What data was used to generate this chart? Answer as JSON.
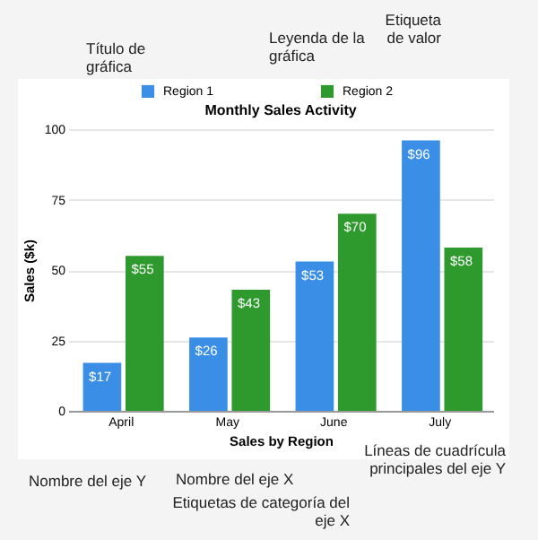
{
  "chart_data": {
    "type": "bar",
    "title": "Monthly Sales Activity",
    "xlabel": "Sales by Region",
    "ylabel": "Sales ($k)",
    "categories": [
      "April",
      "May",
      "June",
      "July"
    ],
    "series": [
      {
        "name": "Region 1",
        "color": "#3a8ee6",
        "values": [
          17,
          26,
          53,
          96
        ],
        "value_labels": [
          "$17",
          "$26",
          "$53",
          "$96"
        ]
      },
      {
        "name": "Region 2",
        "color": "#2e9a2e",
        "values": [
          55,
          43,
          70,
          58
        ],
        "value_labels": [
          "$55",
          "$43",
          "$70",
          "$58"
        ]
      }
    ],
    "ylim": [
      0,
      100
    ],
    "yticks": [
      0,
      25,
      50,
      75,
      100
    ],
    "grid": "y",
    "legend": "top",
    "annotations": [
      "Título de gráfica",
      "Leyenda de la gráfica",
      "Etiqueta de valor",
      "Nombre del eje Y",
      "Nombre del eje X",
      "Etiquetas de categoría del eje X",
      "Líneas de cuadrícula principales del eje Y"
    ]
  }
}
